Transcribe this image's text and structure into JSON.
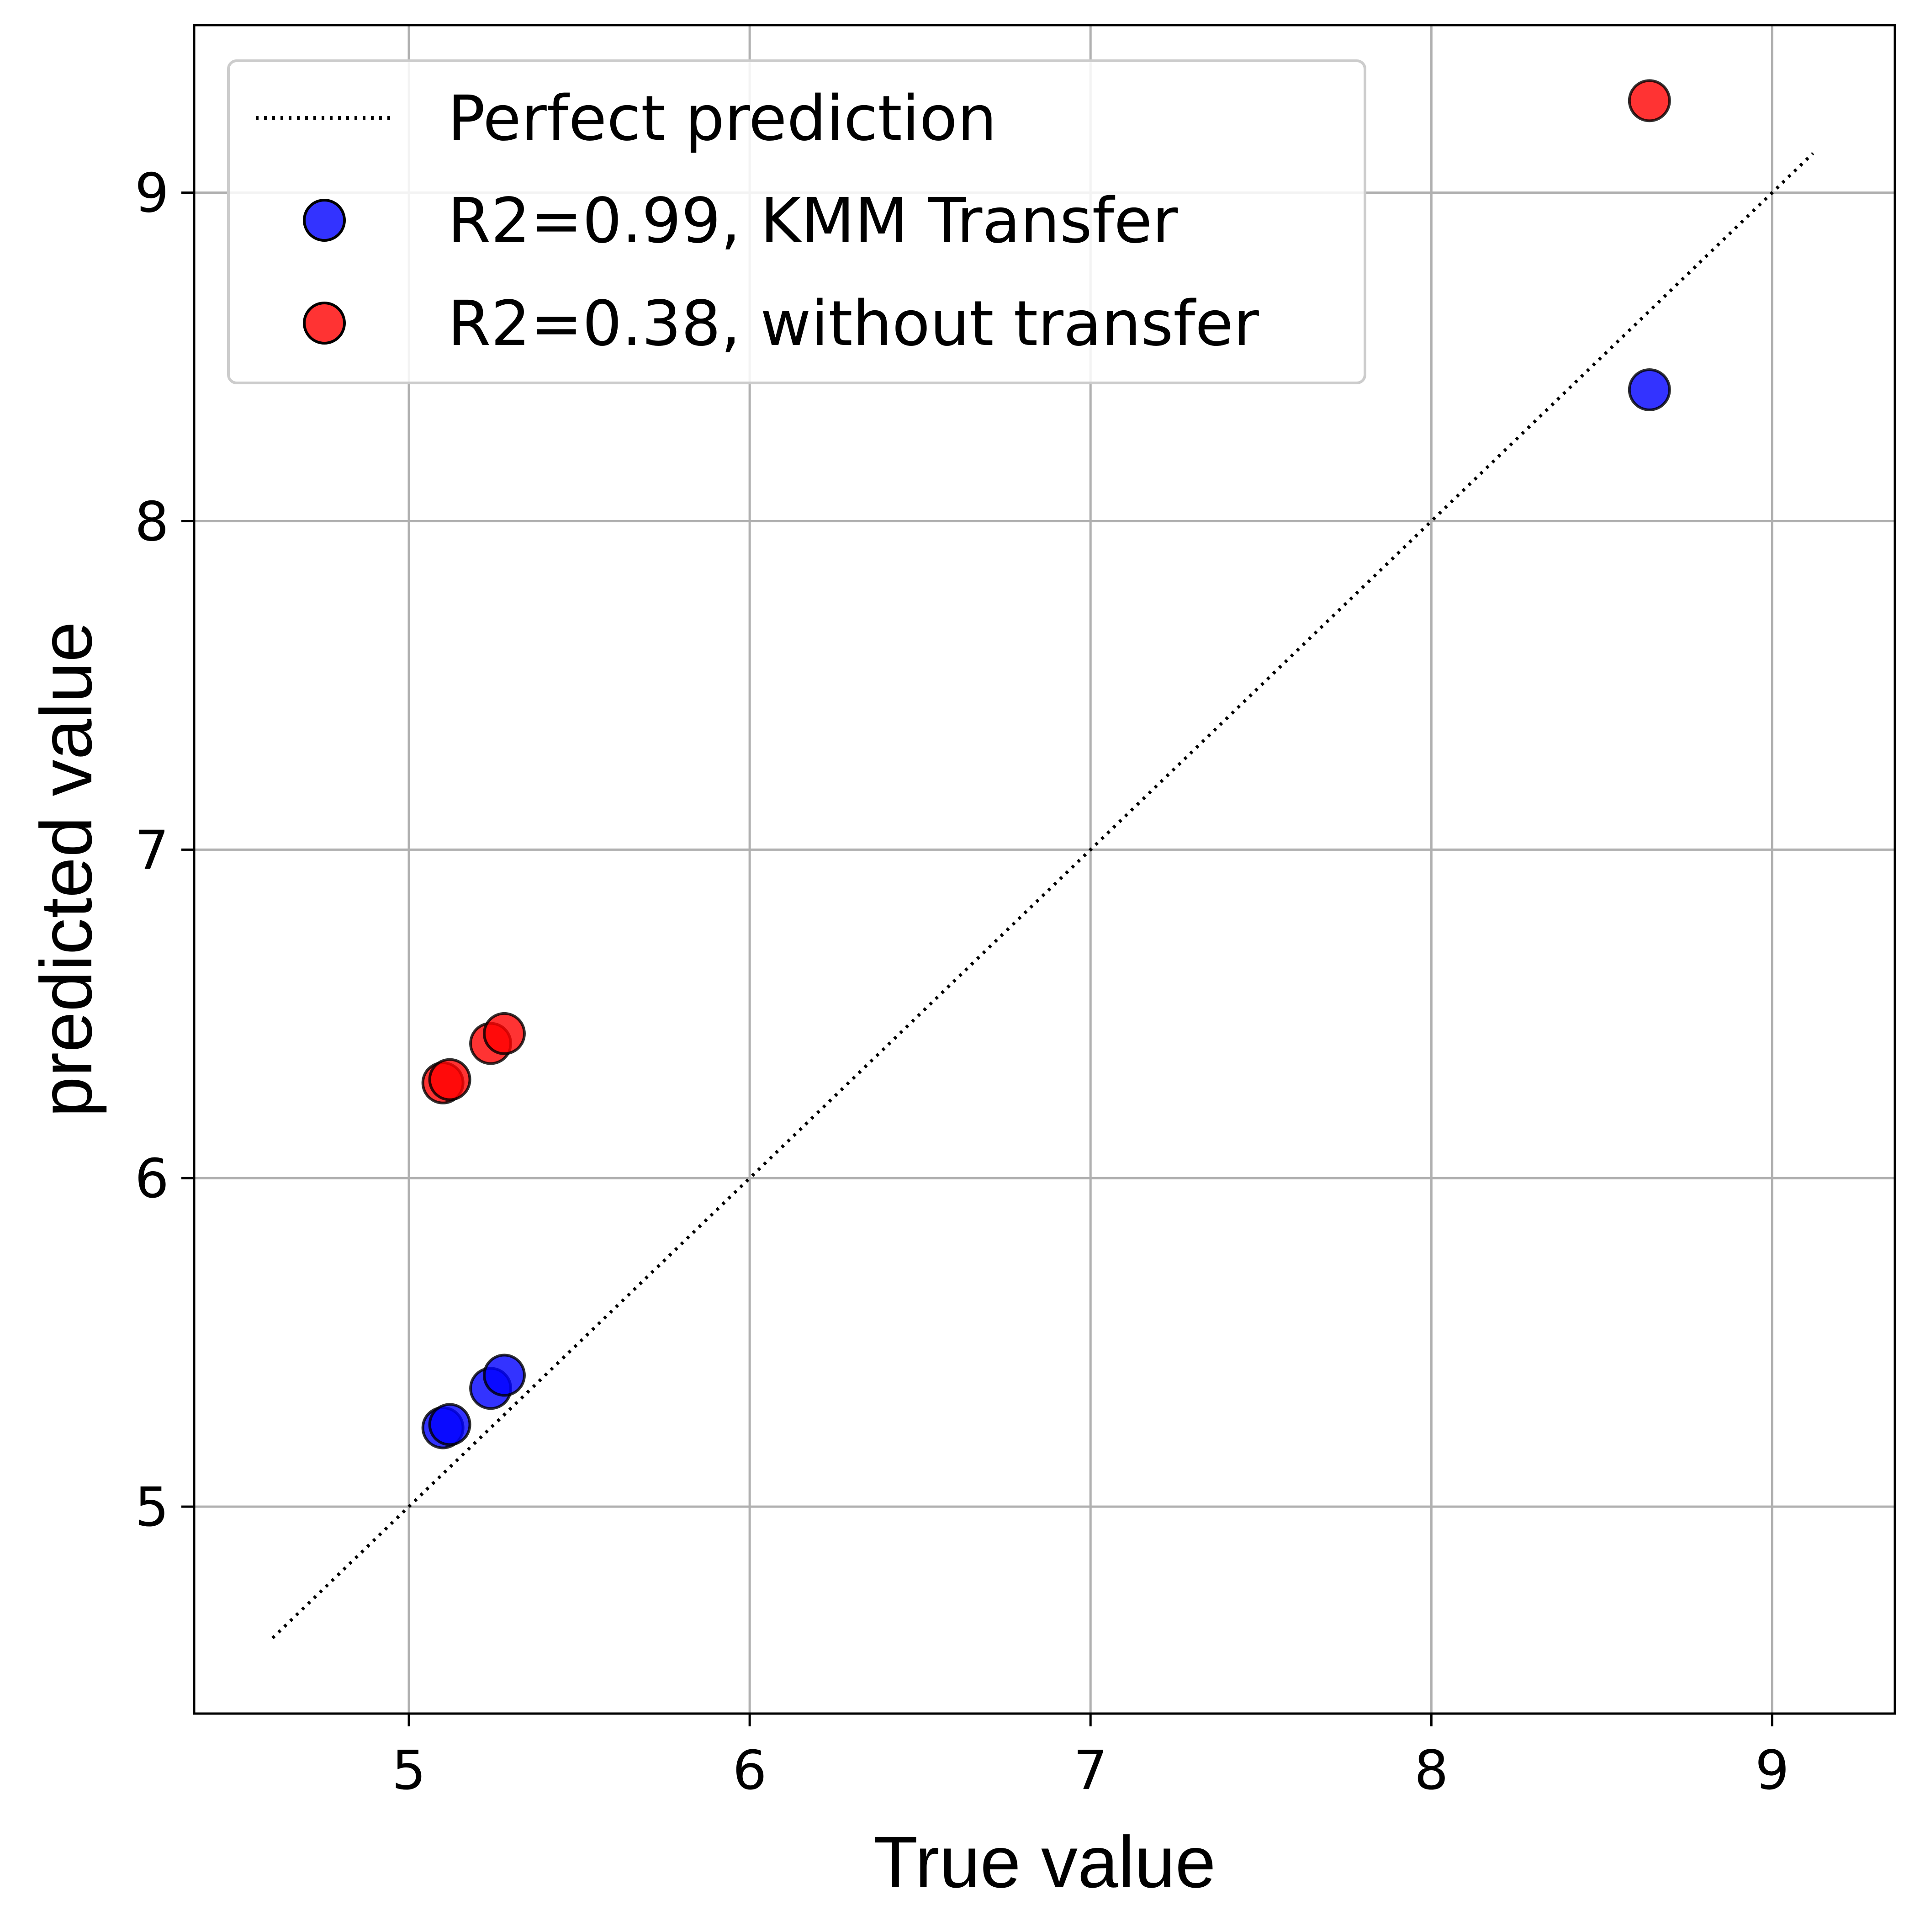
{
  "chart_data": {
    "type": "scatter",
    "xlabel": "True value",
    "ylabel": "predicted value",
    "xlim": [
      4.37,
      9.36
    ],
    "ylim": [
      4.37,
      9.51
    ],
    "x_ticks": [
      5,
      6,
      7,
      8,
      9
    ],
    "y_ticks": [
      5,
      6,
      7,
      8,
      9
    ],
    "grid": true,
    "legend_position": "top-left",
    "reference_line": {
      "name": "Perfect prediction",
      "style": "dotted",
      "color": "#000000",
      "x": [
        4.6,
        9.12
      ],
      "y": [
        4.6,
        9.12
      ]
    },
    "series": [
      {
        "name": "R2=0.99, KMM Transfer",
        "color": "#0000ff",
        "points": [
          {
            "x": 5.1,
            "y": 5.24
          },
          {
            "x": 5.12,
            "y": 5.25
          },
          {
            "x": 5.24,
            "y": 5.36
          },
          {
            "x": 5.28,
            "y": 5.4
          },
          {
            "x": 8.64,
            "y": 8.4
          }
        ]
      },
      {
        "name": "R2=0.38, without transfer",
        "color": "#ff0000",
        "points": [
          {
            "x": 5.1,
            "y": 6.29
          },
          {
            "x": 5.12,
            "y": 6.3
          },
          {
            "x": 5.24,
            "y": 6.41
          },
          {
            "x": 5.28,
            "y": 6.44
          },
          {
            "x": 8.64,
            "y": 9.28
          }
        ]
      }
    ]
  }
}
